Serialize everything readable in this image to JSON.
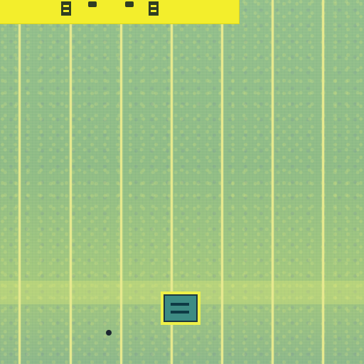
{
  "scene": {
    "description": "",
    "colors": {
      "field": "#8fbc86",
      "lane_line": "#e6e98e",
      "top_bar": "#f3ee2c",
      "post": "#2f3d23",
      "item_frame": "#eef04a",
      "item_fill": "#3d8b83",
      "item_bar": "#0d3a44",
      "dark_spot": "#1c2630"
    }
  },
  "icons": {
    "top_posts": [
      "post-icon",
      "post-icon",
      "post-icon",
      "post-icon"
    ],
    "item": "item-icon",
    "spot": "spot-icon"
  }
}
